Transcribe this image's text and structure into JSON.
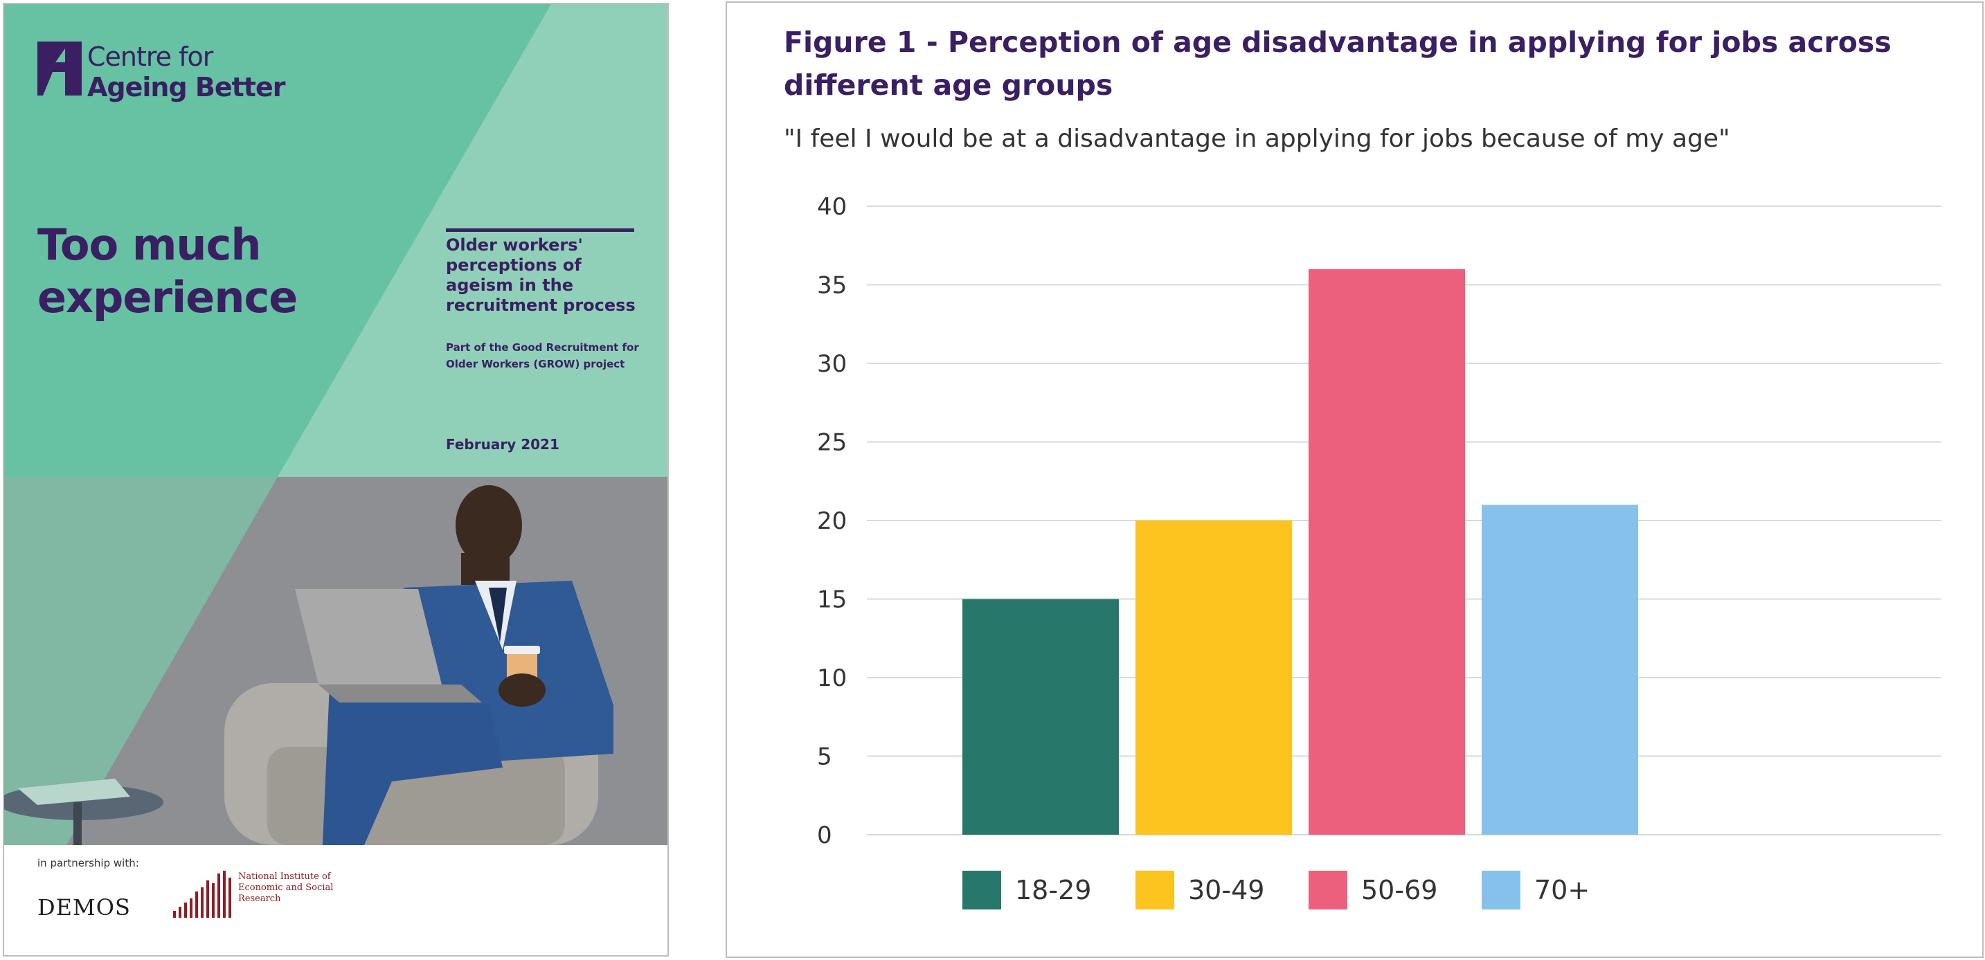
{
  "cover": {
    "logo": {
      "line1": "Centre for",
      "line2": "Ageing Better"
    },
    "title": "Too much experience",
    "subtitle": "Older workers' perceptions of ageism in the recruitment process",
    "project": "Part of the Good Recruitment for Older Workers (GROW) project",
    "date": "February 2021",
    "partnership_label": "in partnership with:",
    "partner_demos": "DEMOS",
    "partner_niesr": "National Institute of Economic and Social Research"
  },
  "colors": {
    "cover_green_dark": "#66c2a2",
    "cover_green_light": "#91d0b8",
    "title_purple": "#3a1f63",
    "grid": "#d9d9d9"
  },
  "chart_data": {
    "type": "bar",
    "title": "Figure 1 - Perception of age disadvantage in applying for jobs across different age groups",
    "subtitle": "\"I feel I would be at a disadvantage in applying for jobs because of my age\"",
    "xlabel": "",
    "ylabel": "",
    "ylim": [
      0,
      40
    ],
    "yticks": [
      0,
      5,
      10,
      15,
      20,
      25,
      30,
      35,
      40
    ],
    "grid": true,
    "legend_position": "bottom",
    "categories": [
      "18-29",
      "30-49",
      "50-69",
      "70+"
    ],
    "values": [
      15,
      20,
      36,
      21
    ],
    "colors": [
      "#27786b",
      "#fdc31f",
      "#ec607d",
      "#85c1ea"
    ]
  }
}
